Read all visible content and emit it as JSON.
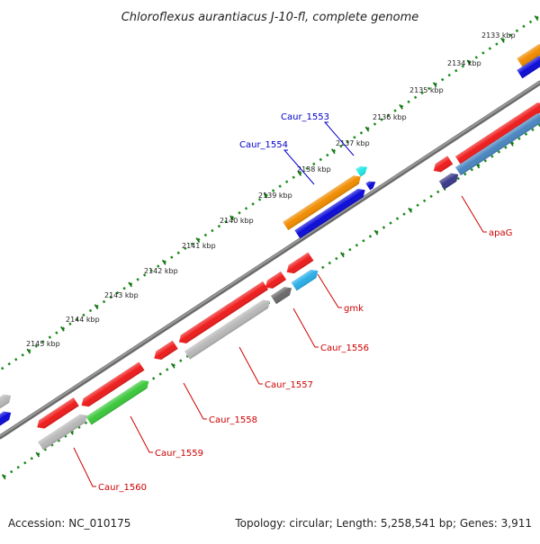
{
  "title": "Chloroflexus aurantiacus J-10-fl, complete genome",
  "footer": {
    "accession": "Accession: NC_010175",
    "summary": "Topology: circular; Length: 5,258,541 bp; Genes: 3,911"
  },
  "ticks": [
    "2133 kbp",
    "2134 kbp",
    "2135 kbp",
    "2136 kbp",
    "2137 kbp",
    "2138 kbp",
    "2139 kbp",
    "2140 kbp",
    "2141 kbp",
    "2142 kbp",
    "2143 kbp",
    "2144 kbp",
    "2145 kbp"
  ],
  "genes": [
    {
      "name": "Caur_1553",
      "color": "#0000cc"
    },
    {
      "name": "Caur_1554",
      "color": "#0000cc"
    },
    {
      "name": "apaG",
      "color": "#cc0000"
    },
    {
      "name": "gmk",
      "color": "#cc0000"
    },
    {
      "name": "Caur_1556",
      "color": "#cc0000"
    },
    {
      "name": "Caur_1557",
      "color": "#cc0000"
    },
    {
      "name": "Caur_1558",
      "color": "#cc0000"
    },
    {
      "name": "Caur_1559",
      "color": "#cc0000"
    },
    {
      "name": "Caur_1560",
      "color": "#cc0000"
    }
  ],
  "colors": {
    "backbone": "#808080",
    "tick_track": "#1a8a1a",
    "red_gene": "#ee1c1c",
    "grey_gene": "#b8b8b8",
    "orange_gene": "#f08c00",
    "blue_gene": "#0b0bd8",
    "steelblue_gene": "#4a86c0",
    "cyan_gene": "#22e6e6",
    "skyblue_gene": "#2aaee8",
    "green_gene": "#3cc83c",
    "darkgrey_gene": "#6a6a6a",
    "navy_gene": "#3a3a8a"
  }
}
